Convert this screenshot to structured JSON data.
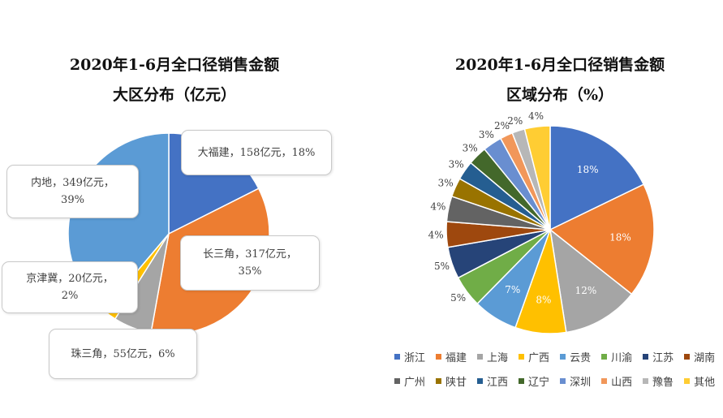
{
  "chart_data": [
    {
      "type": "pie",
      "title": "2020年1-6月全口径销售金额",
      "subtitle": "大区分布（亿元）",
      "categories": [
        "大福建",
        "长三角",
        "珠三角",
        "京津冀",
        "内地"
      ],
      "values": [
        158,
        317,
        55,
        20,
        349
      ],
      "percents": [
        18,
        35,
        6,
        2,
        39
      ],
      "colors": [
        "#4472C4",
        "#ED7D31",
        "#A5A5A5",
        "#FFC000",
        "#5B9BD5"
      ],
      "labels": [
        {
          "line1": "大福建，158亿元，18%",
          "line2": ""
        },
        {
          "line1": "长三角，317亿元，",
          "line2": "35%"
        },
        {
          "line1": "珠三角，55亿元，6%",
          "line2": ""
        },
        {
          "line1": "京津冀，20亿元，",
          "line2": "2%"
        },
        {
          "line1": "内地，349亿元，",
          "line2": "39%"
        }
      ]
    },
    {
      "type": "pie",
      "title": "2020年1-6月全口径销售金额",
      "subtitle": "区域分布（%）",
      "categories": [
        "浙江",
        "福建",
        "上海",
        "广西",
        "云贵",
        "川渝",
        "江苏",
        "湖南",
        "广州",
        "陕甘",
        "江西",
        "辽宁",
        "深圳",
        "山西",
        "豫鲁",
        "其他"
      ],
      "values": [
        18,
        18,
        12,
        8,
        7,
        5,
        5,
        4,
        4,
        3,
        3,
        3,
        3,
        2,
        2,
        4
      ],
      "data_labels": [
        "18%",
        "18%",
        "12%",
        "8%",
        "7%",
        "5%",
        "5%",
        "4%",
        "4%",
        "3%",
        "3%",
        "3%",
        "3%",
        "2%",
        "2%",
        "4%"
      ],
      "colors": [
        "#4472C4",
        "#ED7D31",
        "#A5A5A5",
        "#FFC000",
        "#5B9BD5",
        "#70AD47",
        "#264478",
        "#9E480E",
        "#636363",
        "#997300",
        "#255E91",
        "#43682B",
        "#698ED0",
        "#F1975A",
        "#B7B7B7",
        "#FFCD33"
      ],
      "legend": "bottom"
    }
  ]
}
